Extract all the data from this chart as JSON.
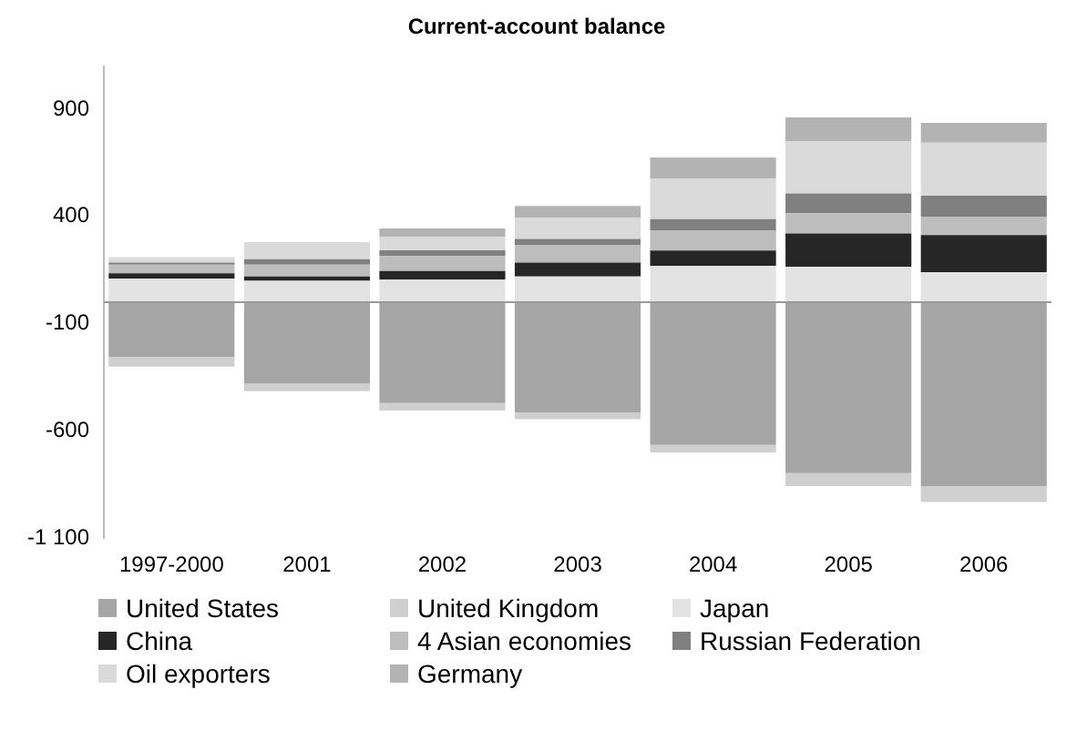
{
  "chart_data": {
    "type": "bar",
    "title": "Current-account balance",
    "stacked": true,
    "categories": [
      "1997-2000",
      "2001",
      "2002",
      "2003",
      "2004",
      "2005",
      "2006"
    ],
    "series": [
      {
        "name": "United States",
        "color": "#a6a6a6",
        "values": [
          -255,
          -380,
          -470,
          -515,
          -665,
          -797,
          -857
        ]
      },
      {
        "name": "United Kingdom",
        "color": "#cfcfcf",
        "values": [
          -45,
          -35,
          -35,
          -30,
          -35,
          -60,
          -75
        ]
      },
      {
        "name": "Japan",
        "color": "#e3e3e3",
        "values": [
          110,
          100,
          105,
          120,
          170,
          165,
          140
        ]
      },
      {
        "name": "China",
        "color": "#262626",
        "values": [
          25,
          20,
          40,
          65,
          71,
          155,
          173
        ]
      },
      {
        "name": "4 Asian economies",
        "color": "#bdbdbd",
        "values": [
          40,
          55,
          70,
          80,
          92,
          95,
          86
        ]
      },
      {
        "name": "Russian Federation",
        "color": "#808080",
        "values": [
          10,
          25,
          27,
          30,
          54,
          92,
          98
        ]
      },
      {
        "name": "Oil exporters",
        "color": "#dadada",
        "values": [
          25,
          80,
          63,
          100,
          190,
          244,
          247
        ]
      },
      {
        "name": "Germany",
        "color": "#b3b3b3",
        "values": [
          0,
          0,
          39,
          54,
          98,
          110,
          92
        ]
      }
    ],
    "ylim": [
      -1100,
      1100
    ],
    "yticks": [
      900,
      400,
      -100,
      -600,
      {
        "value": -1100,
        "label": "-1 100"
      }
    ],
    "ref_lines": [
      {
        "axis": "y",
        "value": 0,
        "color": "#999999"
      }
    ],
    "grid": false,
    "legend": "bottom"
  }
}
